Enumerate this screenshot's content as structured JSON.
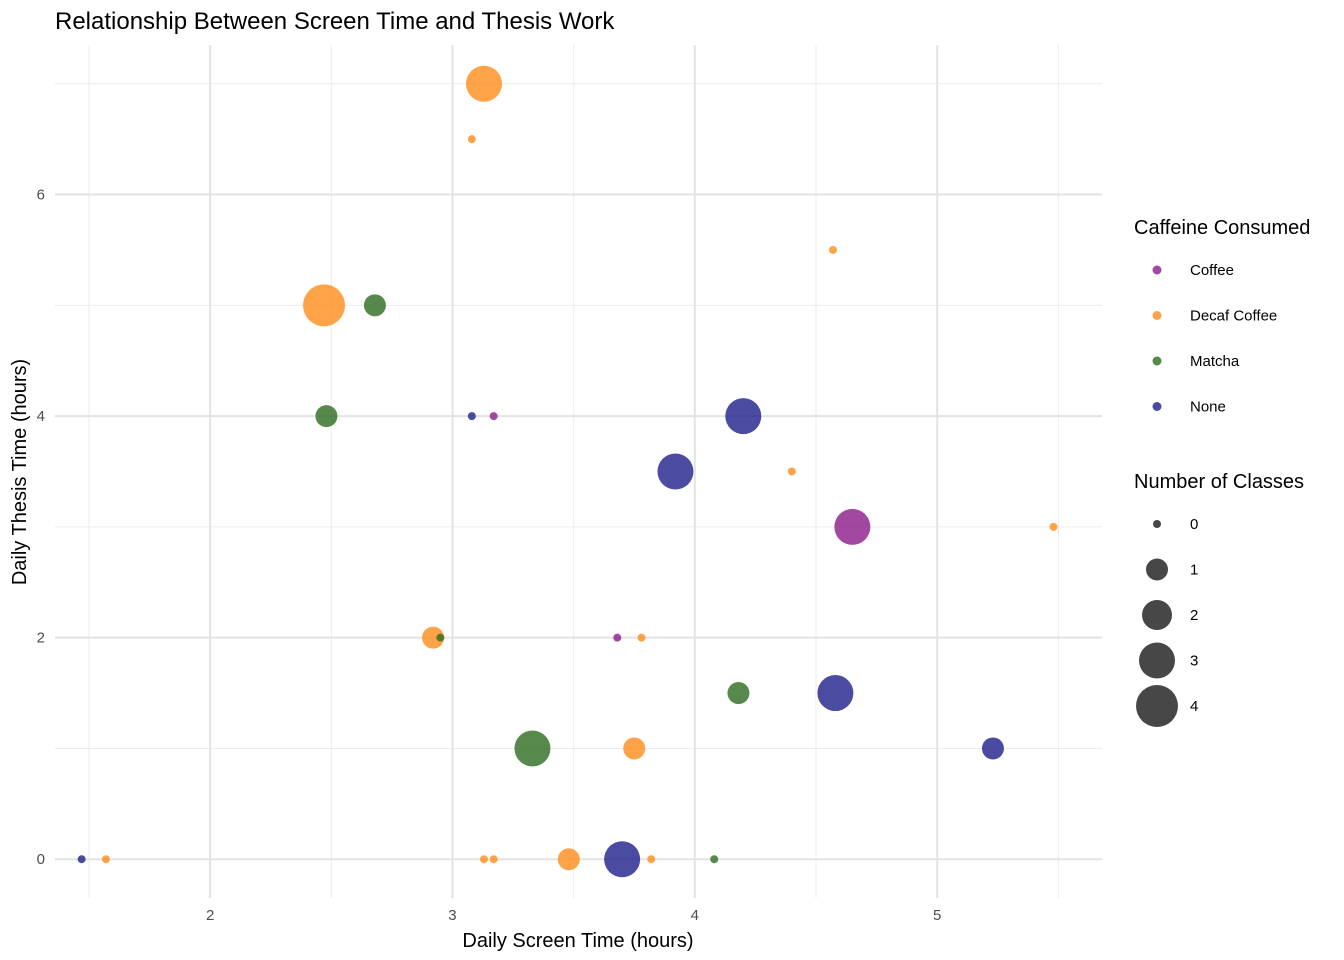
{
  "chart_data": {
    "type": "scatter",
    "title": "Relationship Between Screen Time and Thesis Work",
    "xlabel": "Daily Screen Time (hours)",
    "ylabel": "Daily Thesis Time (hours)",
    "xlim": [
      1.36,
      5.68
    ],
    "ylim": [
      -0.35,
      7.35
    ],
    "x_ticks": [
      2,
      3,
      4,
      5
    ],
    "y_ticks": [
      0,
      2,
      4,
      6
    ],
    "grid": true,
    "colors": {
      "Coffee": "#8b1a89",
      "Decaf Coffee": "#ff8c1a",
      "Matcha": "#2e6b1f",
      "None": "#1e1e8a"
    },
    "legend": {
      "placement": "right",
      "color_title": "Caffeine Consumed",
      "color_entries": [
        "Coffee",
        "Decaf Coffee",
        "Matcha",
        "None"
      ],
      "size_title": "Number of Classes",
      "size_entries": [
        0,
        1,
        2,
        3,
        4
      ]
    },
    "points": [
      {
        "x": 3.13,
        "y": 7.0,
        "caffeine": "Decaf Coffee",
        "classes": 3
      },
      {
        "x": 3.08,
        "y": 6.5,
        "caffeine": "Decaf Coffee",
        "classes": 0
      },
      {
        "x": 4.57,
        "y": 5.5,
        "caffeine": "Decaf Coffee",
        "classes": 0
      },
      {
        "x": 2.47,
        "y": 5.0,
        "caffeine": "Decaf Coffee",
        "classes": 4
      },
      {
        "x": 2.68,
        "y": 5.0,
        "caffeine": "Matcha",
        "classes": 1
      },
      {
        "x": 2.48,
        "y": 4.0,
        "caffeine": "Matcha",
        "classes": 1
      },
      {
        "x": 3.08,
        "y": 4.0,
        "caffeine": "None",
        "classes": 0
      },
      {
        "x": 3.17,
        "y": 4.0,
        "caffeine": "Coffee",
        "classes": 0
      },
      {
        "x": 4.2,
        "y": 4.0,
        "caffeine": "None",
        "classes": 3
      },
      {
        "x": 3.92,
        "y": 3.5,
        "caffeine": "None",
        "classes": 3
      },
      {
        "x": 4.4,
        "y": 3.5,
        "caffeine": "Decaf Coffee",
        "classes": 0
      },
      {
        "x": 4.65,
        "y": 3.0,
        "caffeine": "Coffee",
        "classes": 3
      },
      {
        "x": 5.48,
        "y": 3.0,
        "caffeine": "Decaf Coffee",
        "classes": 0
      },
      {
        "x": 2.92,
        "y": 2.0,
        "caffeine": "Decaf Coffee",
        "classes": 1
      },
      {
        "x": 2.95,
        "y": 2.0,
        "caffeine": "Matcha",
        "classes": 0
      },
      {
        "x": 3.68,
        "y": 2.0,
        "caffeine": "Coffee",
        "classes": 0
      },
      {
        "x": 3.78,
        "y": 2.0,
        "caffeine": "Decaf Coffee",
        "classes": 0
      },
      {
        "x": 4.18,
        "y": 1.5,
        "caffeine": "Matcha",
        "classes": 1
      },
      {
        "x": 4.58,
        "y": 1.5,
        "caffeine": "None",
        "classes": 3
      },
      {
        "x": 3.33,
        "y": 1.0,
        "caffeine": "Matcha",
        "classes": 3
      },
      {
        "x": 3.75,
        "y": 1.0,
        "caffeine": "Decaf Coffee",
        "classes": 1
      },
      {
        "x": 5.23,
        "y": 1.0,
        "caffeine": "None",
        "classes": 1
      },
      {
        "x": 1.47,
        "y": 0.0,
        "caffeine": "None",
        "classes": 0
      },
      {
        "x": 1.57,
        "y": 0.0,
        "caffeine": "Decaf Coffee",
        "classes": 0
      },
      {
        "x": 3.13,
        "y": 0.0,
        "caffeine": "Decaf Coffee",
        "classes": 0
      },
      {
        "x": 3.17,
        "y": 0.0,
        "caffeine": "Decaf Coffee",
        "classes": 0
      },
      {
        "x": 3.48,
        "y": 0.0,
        "caffeine": "Decaf Coffee",
        "classes": 1
      },
      {
        "x": 3.7,
        "y": 0.0,
        "caffeine": "None",
        "classes": 3
      },
      {
        "x": 3.82,
        "y": 0.0,
        "caffeine": "Decaf Coffee",
        "classes": 0
      },
      {
        "x": 4.08,
        "y": 0.0,
        "caffeine": "Matcha",
        "classes": 0
      }
    ]
  }
}
